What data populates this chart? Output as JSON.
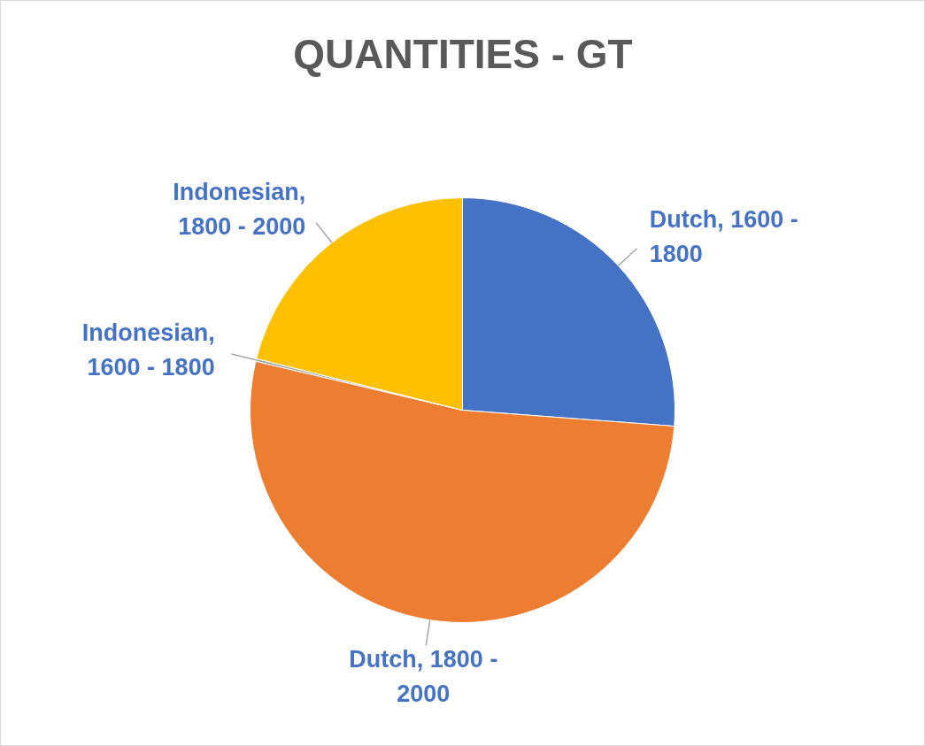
{
  "chart_data": {
    "type": "pie",
    "title": "QUANTITIES - GT",
    "categories": [
      "Dutch, 1600 - 1800",
      "Dutch, 1800 - 2000",
      "Indonesian, 1600 - 1800",
      "Indonesian, 1800 - 2000"
    ],
    "values": [
      26.2,
      52.5,
      0.2,
      21.1
    ],
    "colors": [
      "#4472c4",
      "#ed7d31",
      "#a5a5a5",
      "#ffc000"
    ]
  }
}
